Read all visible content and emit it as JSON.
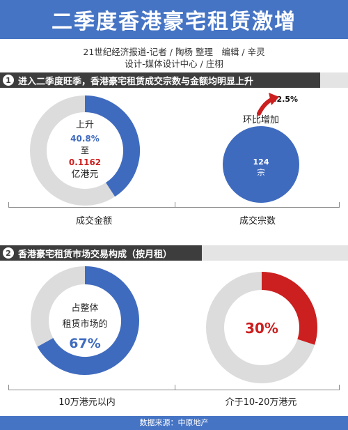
{
  "header": {
    "title": "二季度香港豪宅租赁激增"
  },
  "credits": {
    "line1": "21世纪经济报道-记者 / 陶杨 整理　编辑 / 辛灵",
    "line2": "设计-媒体设计中心 / 庄栩"
  },
  "section1": {
    "number": "1",
    "title": "进入二季度旺季，香港豪宅租赁成交宗数与金额均明显上升"
  },
  "section2": {
    "number": "2",
    "title": "香港豪宅租赁市场交易构成（按月租）"
  },
  "footer": {
    "source": "数据来源：中原地产"
  },
  "colors": {
    "blue": "#3f6bbf",
    "red": "#cc1f1f",
    "gray": "#dcdcdc",
    "dark": "#3d3d3d"
  },
  "chart_data": [
    {
      "type": "pie",
      "caption": "成交金额",
      "center_text": [
        "上升",
        "40.8%",
        "至",
        "0.1162",
        "亿港元"
      ],
      "values": [
        {
          "label": "上升",
          "value": 40.8,
          "unit": "%"
        },
        {
          "label": "至",
          "value": 0.1162,
          "unit": "亿港元"
        }
      ]
    },
    {
      "type": "pie",
      "caption": "成交宗数",
      "center_text": [
        "124",
        "宗"
      ],
      "annotation": [
        "环比增加",
        "42.5%"
      ],
      "values": [
        {
          "label": "宗",
          "value": 124
        },
        {
          "label": "环比增加",
          "value": 42.5,
          "unit": "%"
        }
      ]
    },
    {
      "type": "pie",
      "caption": "10万港元以内",
      "center_text": [
        "占整体",
        "租赁市场的",
        "67%"
      ],
      "values": [
        {
          "label": "10万港元以内",
          "value": 67,
          "unit": "%"
        }
      ]
    },
    {
      "type": "pie",
      "caption": "介于10-20万港元",
      "center_text": [
        "30%"
      ],
      "values": [
        {
          "label": "介于10-20万港元",
          "value": 30,
          "unit": "%"
        }
      ]
    }
  ]
}
